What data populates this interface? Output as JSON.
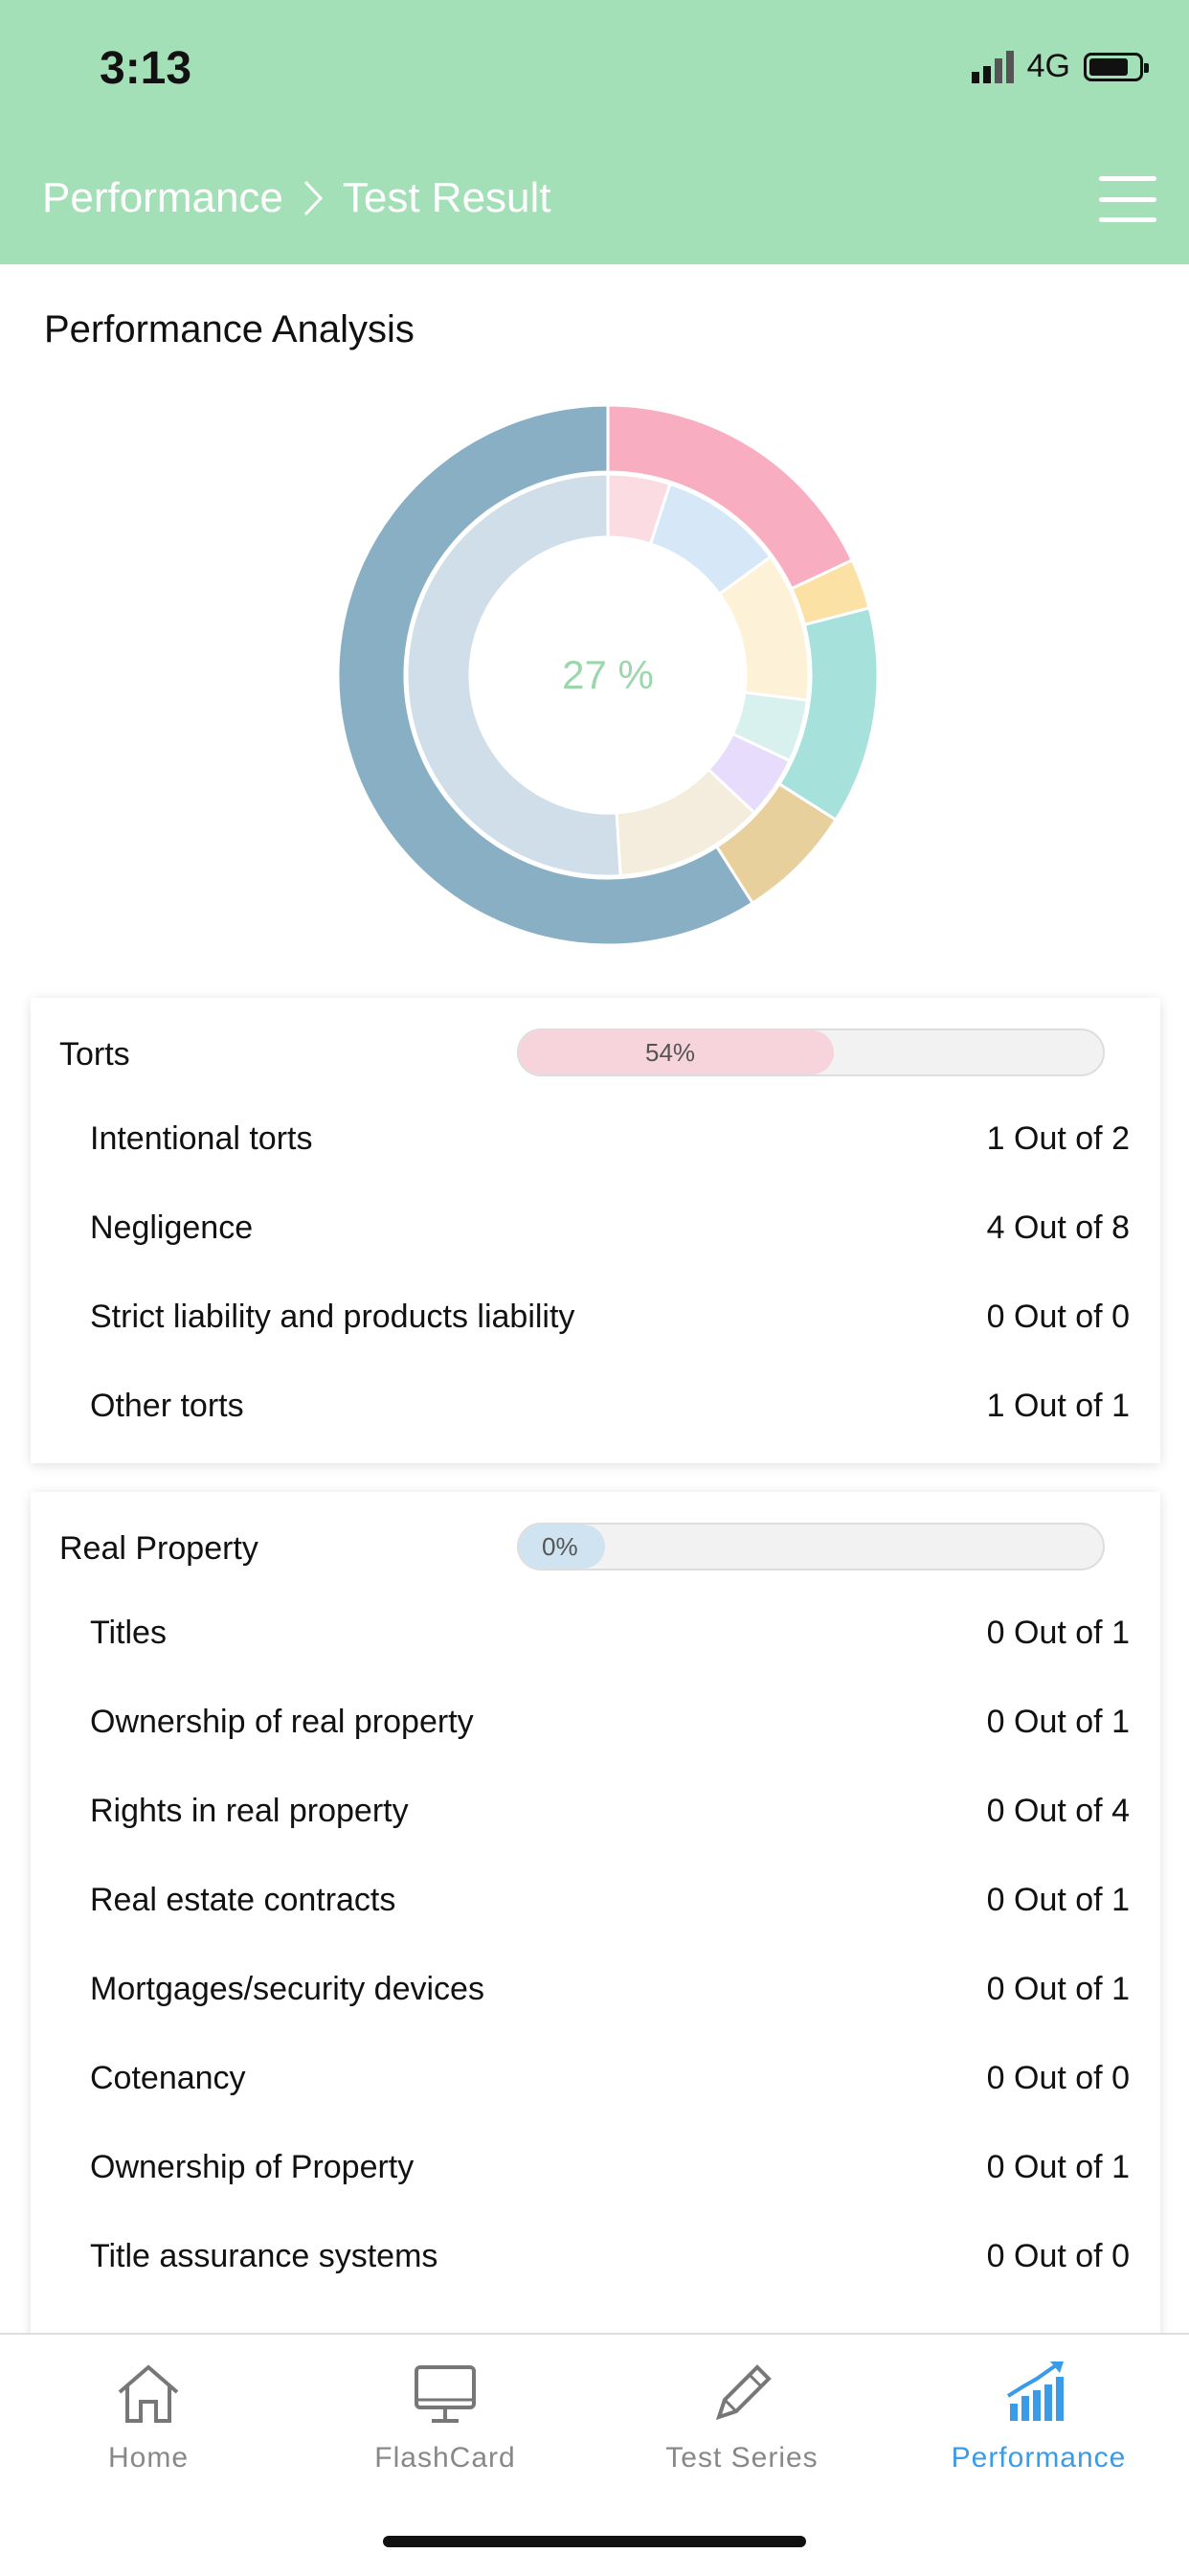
{
  "status_bar": {
    "time": "3:13",
    "network": "4G"
  },
  "header": {
    "breadcrumb_root": "Performance",
    "breadcrumb_current": "Test Result"
  },
  "section_title": "Performance Analysis",
  "chart_data": {
    "type": "pie",
    "center_label": "27 %",
    "outer_ring": [
      {
        "value": 18,
        "color": "#f9adc0"
      },
      {
        "value": 3,
        "color": "#fbe2a4"
      },
      {
        "value": 13,
        "color": "#a6e1dc"
      },
      {
        "value": 7,
        "color": "#e8d09d"
      },
      {
        "value": 59,
        "color": "#88afc4"
      }
    ],
    "inner_ring": [
      {
        "value": 5,
        "color": "#fcdce3"
      },
      {
        "value": 10,
        "color": "#d6e8f8"
      },
      {
        "value": 12,
        "color": "#fdf2d8"
      },
      {
        "value": 5,
        "color": "#d8f0ee"
      },
      {
        "value": 5,
        "color": "#e7dcfb"
      },
      {
        "value": 12,
        "color": "#f4ecdc"
      },
      {
        "value": 51,
        "color": "#d0dee9"
      }
    ]
  },
  "cards": [
    {
      "title": "Torts",
      "progress_label": "54%",
      "progress_value": 0.54,
      "bar_color": "#f7d3dc",
      "rows": [
        {
          "name": "Intentional torts",
          "score": "1 Out of 2"
        },
        {
          "name": "Negligence",
          "score": "4 Out of 8"
        },
        {
          "name": "Strict liability and products liability",
          "score": "0 Out of 0"
        },
        {
          "name": "Other torts",
          "score": "1 Out of 1"
        }
      ]
    },
    {
      "title": "Real Property",
      "progress_label": "0%",
      "progress_value": 0,
      "bar_color": "#cfe3f1",
      "rows": [
        {
          "name": "Titles",
          "score": "0 Out of 1"
        },
        {
          "name": "Ownership of real property",
          "score": "0 Out of 1"
        },
        {
          "name": "Rights in real property",
          "score": "0 Out of 4"
        },
        {
          "name": "Real estate contracts",
          "score": "0 Out of 1"
        },
        {
          "name": "Mortgages/security devices",
          "score": "0 Out of 1"
        },
        {
          "name": "Cotenancy",
          "score": "0 Out of 0"
        },
        {
          "name": "Ownership of Property",
          "score": "0 Out of 1"
        },
        {
          "name": "Title assurance systems",
          "score": "0 Out of 0"
        }
      ]
    }
  ],
  "tabbar": {
    "tabs": [
      {
        "label": "Home",
        "icon": "home-icon"
      },
      {
        "label": "FlashCard",
        "icon": "monitor-icon"
      },
      {
        "label": "Test Series",
        "icon": "pencil-icon"
      },
      {
        "label": "Performance",
        "icon": "bar-chart-icon",
        "active": true
      }
    ],
    "active_color": "#3a9be9"
  }
}
